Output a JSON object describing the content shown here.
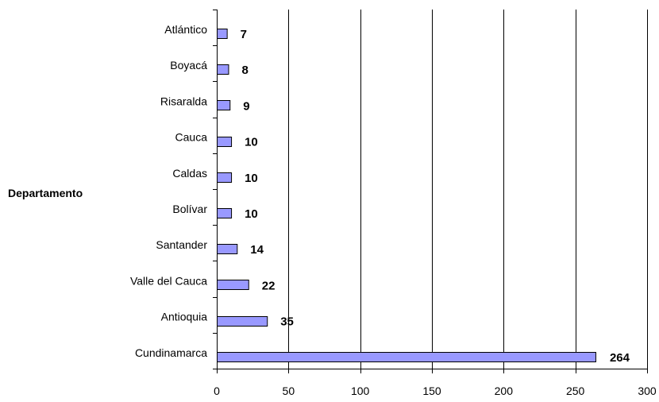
{
  "chart_data": {
    "type": "bar",
    "orientation": "horizontal",
    "ylabel": "Departamento",
    "xlabel": "",
    "title": "",
    "categories": [
      "Atlántico",
      "Boyacá",
      "Risaralda",
      "Cauca",
      "Caldas",
      "Bolívar",
      "Santander",
      "Valle del Cauca",
      "Antioquia",
      "Cundinamarca"
    ],
    "values": [
      7,
      8,
      9,
      10,
      10,
      10,
      14,
      22,
      35,
      264
    ],
    "value_labels": [
      "7",
      "8",
      "9",
      "10",
      "10",
      "10",
      "14",
      "22",
      "35",
      "264"
    ],
    "xlim": [
      0,
      300
    ],
    "x_ticks": [
      0,
      50,
      100,
      150,
      200,
      250,
      300
    ],
    "x_tick_labels": [
      "0",
      "50",
      "100",
      "150",
      "200",
      "250",
      "300"
    ],
    "grid": "vertical major gridlines",
    "legend": "none",
    "bar_color": "#9999ff"
  }
}
